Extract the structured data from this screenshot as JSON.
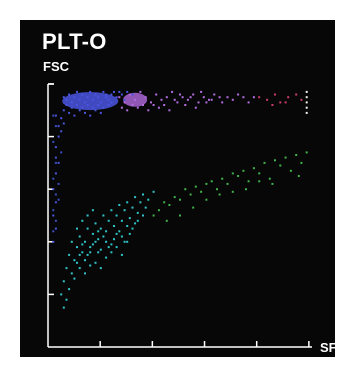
{
  "chart_data": {
    "type": "scatter",
    "title": "PLT-O",
    "xlabel": "SFL",
    "ylabel": "FSC",
    "xlim": [
      0,
      100
    ],
    "ylim": [
      0,
      100
    ],
    "x_ticks": 5,
    "y_ticks": 5,
    "grid": false,
    "background": "#070707",
    "axis_color": "#ffffff",
    "series": [
      {
        "color": "#4a55e0",
        "points": [
          [
            6,
            95
          ],
          [
            7,
            94
          ],
          [
            8,
            96
          ],
          [
            9,
            93
          ],
          [
            10,
            95
          ],
          [
            11,
            97
          ],
          [
            12,
            94
          ],
          [
            13,
            96
          ],
          [
            14,
            93
          ],
          [
            15,
            95
          ],
          [
            16,
            97
          ],
          [
            17,
            94
          ],
          [
            18,
            96
          ],
          [
            19,
            95
          ],
          [
            20,
            93
          ],
          [
            21,
            97
          ],
          [
            22,
            95
          ],
          [
            23,
            94
          ],
          [
            24,
            96
          ],
          [
            25,
            97
          ],
          [
            7,
            92
          ],
          [
            9,
            91
          ],
          [
            11,
            92
          ],
          [
            13,
            91
          ],
          [
            15,
            92
          ],
          [
            17,
            91
          ],
          [
            19,
            92
          ],
          [
            21,
            91
          ],
          [
            23,
            92
          ],
          [
            8,
            89
          ],
          [
            10,
            88
          ],
          [
            12,
            90
          ],
          [
            14,
            89
          ],
          [
            16,
            88
          ],
          [
            6,
            90
          ],
          [
            18,
            90
          ],
          [
            20,
            89
          ],
          [
            22,
            96
          ],
          [
            24,
            93
          ],
          [
            26,
            95
          ],
          [
            27,
            97
          ],
          [
            28,
            96
          ],
          [
            5,
            87
          ],
          [
            4,
            84
          ],
          [
            4,
            80
          ],
          [
            3,
            76
          ],
          [
            5,
            82
          ],
          [
            6,
            85
          ],
          [
            3,
            72
          ],
          [
            3,
            66
          ],
          [
            4,
            70
          ],
          [
            2,
            60
          ],
          [
            3,
            55
          ],
          [
            2,
            50
          ],
          [
            3,
            45
          ],
          [
            2,
            40
          ],
          [
            3,
            88
          ],
          [
            30,
            97
          ],
          [
            32,
            96
          ],
          [
            29,
            94
          ]
        ]
      },
      {
        "color": "#b36be0",
        "points": [
          [
            27,
            95
          ],
          [
            29,
            93
          ],
          [
            31,
            96
          ],
          [
            33,
            94
          ],
          [
            35,
            97
          ],
          [
            37,
            95
          ],
          [
            39,
            93
          ],
          [
            41,
            96
          ],
          [
            43,
            94
          ],
          [
            45,
            95
          ],
          [
            47,
            97
          ],
          [
            49,
            93
          ],
          [
            51,
            95
          ],
          [
            53,
            94
          ],
          [
            55,
            96
          ],
          [
            57,
            93
          ],
          [
            59,
            95
          ],
          [
            61,
            94
          ],
          [
            63,
            96
          ],
          [
            65,
            95
          ],
          [
            28,
            91
          ],
          [
            30,
            90
          ],
          [
            32,
            92
          ],
          [
            34,
            91
          ],
          [
            36,
            92
          ],
          [
            38,
            90
          ],
          [
            40,
            92
          ],
          [
            42,
            91
          ],
          [
            44,
            92
          ],
          [
            46,
            90
          ],
          [
            48,
            94
          ],
          [
            50,
            96
          ],
          [
            52,
            92
          ],
          [
            54,
            95
          ],
          [
            56,
            91
          ],
          [
            58,
            97
          ],
          [
            60,
            93
          ],
          [
            62,
            94
          ],
          [
            66,
            93
          ],
          [
            68,
            95
          ],
          [
            70,
            94
          ],
          [
            72,
            96
          ],
          [
            74,
            95
          ],
          [
            76,
            93
          ],
          [
            78,
            95
          ]
        ]
      },
      {
        "color": "#d03a6a",
        "points": [
          [
            80,
            95
          ],
          [
            83,
            94
          ],
          [
            86,
            96
          ],
          [
            88,
            93
          ],
          [
            91,
            95
          ],
          [
            94,
            96
          ],
          [
            96,
            94
          ],
          [
            85,
            92
          ],
          [
            90,
            93
          ]
        ]
      },
      {
        "color": "#f3f0e8",
        "points": [
          [
            98,
            97
          ],
          [
            98,
            95
          ],
          [
            98,
            93
          ],
          [
            98,
            91
          ],
          [
            98,
            89
          ]
        ]
      },
      {
        "color": "#3fb34a",
        "points": [
          [
            40,
            50
          ],
          [
            42,
            52
          ],
          [
            44,
            55
          ],
          [
            46,
            54
          ],
          [
            48,
            57
          ],
          [
            50,
            56
          ],
          [
            52,
            60
          ],
          [
            54,
            58
          ],
          [
            56,
            61
          ],
          [
            58,
            59
          ],
          [
            60,
            62
          ],
          [
            62,
            63
          ],
          [
            64,
            60
          ],
          [
            66,
            64
          ],
          [
            68,
            62
          ],
          [
            70,
            66
          ],
          [
            72,
            65
          ],
          [
            74,
            67
          ],
          [
            76,
            63
          ],
          [
            78,
            68
          ],
          [
            80,
            66
          ],
          [
            82,
            70
          ],
          [
            84,
            64
          ],
          [
            86,
            71
          ],
          [
            88,
            69
          ],
          [
            90,
            72
          ],
          [
            92,
            67
          ],
          [
            94,
            73
          ],
          [
            96,
            70
          ],
          [
            98,
            74
          ],
          [
            45,
            48
          ],
          [
            55,
            53
          ],
          [
            65,
            58
          ],
          [
            75,
            60
          ],
          [
            85,
            62
          ],
          [
            95,
            65
          ],
          [
            50,
            50
          ],
          [
            60,
            56
          ],
          [
            70,
            59
          ],
          [
            80,
            63
          ]
        ]
      },
      {
        "color": "#2ec4c8",
        "points": [
          [
            5,
            20
          ],
          [
            6,
            25
          ],
          [
            7,
            30
          ],
          [
            8,
            35
          ],
          [
            9,
            28
          ],
          [
            10,
            33
          ],
          [
            11,
            38
          ],
          [
            12,
            42
          ],
          [
            13,
            36
          ],
          [
            14,
            40
          ],
          [
            15,
            45
          ],
          [
            16,
            38
          ],
          [
            17,
            43
          ],
          [
            18,
            47
          ],
          [
            19,
            41
          ],
          [
            20,
            45
          ],
          [
            21,
            50
          ],
          [
            22,
            44
          ],
          [
            23,
            48
          ],
          [
            24,
            52
          ],
          [
            25,
            46
          ],
          [
            26,
            50
          ],
          [
            27,
            54
          ],
          [
            28,
            48
          ],
          [
            29,
            52
          ],
          [
            30,
            55
          ],
          [
            31,
            49
          ],
          [
            32,
            53
          ],
          [
            33,
            57
          ],
          [
            34,
            51
          ],
          [
            35,
            55
          ],
          [
            36,
            58
          ],
          [
            37,
            53
          ],
          [
            38,
            56
          ],
          [
            40,
            59
          ],
          [
            8,
            22
          ],
          [
            10,
            26
          ],
          [
            12,
            30
          ],
          [
            14,
            33
          ],
          [
            16,
            36
          ],
          [
            18,
            32
          ],
          [
            20,
            37
          ],
          [
            22,
            40
          ],
          [
            24,
            39
          ],
          [
            26,
            43
          ],
          [
            28,
            42
          ],
          [
            30,
            46
          ],
          [
            32,
            45
          ],
          [
            34,
            48
          ],
          [
            36,
            50
          ],
          [
            9,
            40
          ],
          [
            11,
            45
          ],
          [
            13,
            48
          ],
          [
            15,
            50
          ],
          [
            17,
            52
          ],
          [
            6,
            15
          ],
          [
            7,
            18
          ],
          [
            19,
            36
          ],
          [
            21,
            42
          ],
          [
            23,
            38
          ],
          [
            25,
            41
          ],
          [
            27,
            44
          ],
          [
            29,
            40
          ],
          [
            31,
            43
          ],
          [
            33,
            47
          ],
          [
            12,
            35
          ],
          [
            14,
            28
          ],
          [
            16,
            31
          ],
          [
            18,
            40
          ],
          [
            20,
            30
          ],
          [
            22,
            34
          ],
          [
            24,
            36
          ],
          [
            26,
            38
          ],
          [
            28,
            35
          ],
          [
            30,
            40
          ],
          [
            11,
            32
          ],
          [
            13,
            39
          ],
          [
            15,
            35
          ],
          [
            17,
            39
          ],
          [
            19,
            44
          ]
        ]
      },
      {
        "color": "#3a4fc0",
        "points": [
          [
            2,
            88
          ],
          [
            3,
            84
          ],
          [
            2,
            78
          ],
          [
            3,
            70
          ],
          [
            2,
            64
          ],
          [
            3,
            58
          ],
          [
            2,
            52
          ],
          [
            3,
            48
          ],
          [
            2,
            44
          ],
          [
            4,
            62
          ],
          [
            4,
            56
          ],
          [
            5,
            74
          ]
        ]
      }
    ]
  }
}
